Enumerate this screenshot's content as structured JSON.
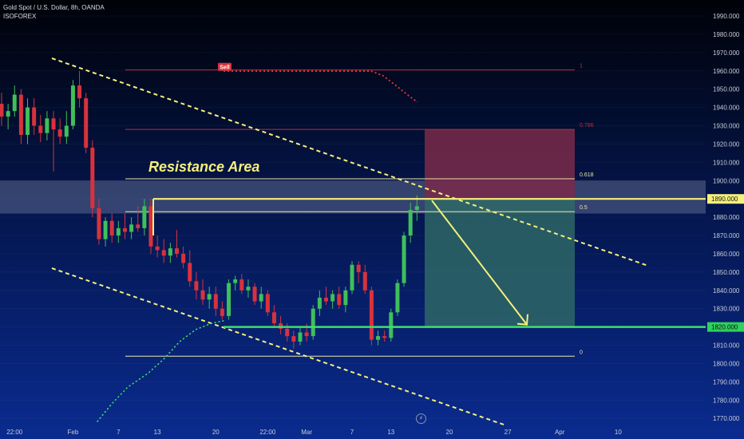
{
  "header": {
    "symbol_line": "Gold Spot / U.S. Dollar, 8h, OANDA",
    "author": "ISOFOREX"
  },
  "icons": {
    "bolt": "lightning-icon",
    "bolt_glyph": "⚡"
  },
  "colors": {
    "bull": "#3fbf5a",
    "bear": "#d8323c",
    "trendline": "#f5f07a",
    "fib_line": "#b82e3a",
    "fib_half": "#ece7a5",
    "price_badge_bg": "#f5f07a",
    "support_line": "#3ee06b",
    "support_badge_bg": "#2fd15e",
    "stop_zone": "#7a2a4a",
    "target_zone": "#2f6b66",
    "resistance_band": "#9aa6c0"
  },
  "chart_data": {
    "type": "candlestick",
    "symbol": "Gold Spot / U.S. Dollar",
    "timeframe": "8h",
    "source": "OANDA",
    "ylim": [
      1765,
      1995
    ],
    "y_ticks": [
      "1770.000",
      "1780.000",
      "1790.000",
      "1800.000",
      "1810.000",
      "1820.000",
      "1830.000",
      "1840.000",
      "1850.000",
      "1860.000",
      "1870.000",
      "1880.000",
      "1890.000",
      "1900.000",
      "1910.000",
      "1920.000",
      "1930.000",
      "1940.000",
      "1950.000",
      "1960.000",
      "1970.000",
      "1980.000",
      "1990.000"
    ],
    "y_tick_values": [
      1770,
      1780,
      1790,
      1800,
      1810,
      1820,
      1830,
      1840,
      1850,
      1860,
      1870,
      1880,
      1890,
      1900,
      1910,
      1920,
      1930,
      1940,
      1950,
      1960,
      1970,
      1980,
      1990
    ],
    "x_ticks": [
      "22:00",
      "Feb",
      "7",
      "13",
      "20",
      "22:00",
      "Mar",
      "7",
      "13",
      "20",
      "27",
      "Apr",
      "10"
    ],
    "x_tick_bars": [
      2,
      11,
      18,
      24,
      33,
      41,
      47,
      54,
      60,
      69,
      78,
      86,
      95
    ],
    "candles": [
      {
        "o": 1942,
        "h": 1948,
        "l": 1930,
        "c": 1935
      },
      {
        "o": 1935,
        "h": 1942,
        "l": 1928,
        "c": 1938
      },
      {
        "o": 1938,
        "h": 1952,
        "l": 1935,
        "c": 1947
      },
      {
        "o": 1947,
        "h": 1950,
        "l": 1920,
        "c": 1925
      },
      {
        "o": 1925,
        "h": 1945,
        "l": 1920,
        "c": 1940
      },
      {
        "o": 1940,
        "h": 1945,
        "l": 1925,
        "c": 1930
      },
      {
        "o": 1930,
        "h": 1936,
        "l": 1921,
        "c": 1926
      },
      {
        "o": 1926,
        "h": 1938,
        "l": 1922,
        "c": 1934
      },
      {
        "o": 1934,
        "h": 1938,
        "l": 1905,
        "c": 1928
      },
      {
        "o": 1928,
        "h": 1934,
        "l": 1920,
        "c": 1924
      },
      {
        "o": 1924,
        "h": 1938,
        "l": 1920,
        "c": 1930
      },
      {
        "o": 1930,
        "h": 1955,
        "l": 1928,
        "c": 1952
      },
      {
        "o": 1952,
        "h": 1960,
        "l": 1940,
        "c": 1945
      },
      {
        "o": 1945,
        "h": 1948,
        "l": 1915,
        "c": 1918
      },
      {
        "o": 1918,
        "h": 1922,
        "l": 1880,
        "c": 1885
      },
      {
        "o": 1885,
        "h": 1890,
        "l": 1865,
        "c": 1868
      },
      {
        "o": 1868,
        "h": 1880,
        "l": 1864,
        "c": 1878
      },
      {
        "o": 1878,
        "h": 1882,
        "l": 1866,
        "c": 1870
      },
      {
        "o": 1870,
        "h": 1878,
        "l": 1866,
        "c": 1874
      },
      {
        "o": 1874,
        "h": 1882,
        "l": 1868,
        "c": 1872
      },
      {
        "o": 1872,
        "h": 1880,
        "l": 1868,
        "c": 1876
      },
      {
        "o": 1876,
        "h": 1886,
        "l": 1872,
        "c": 1874
      },
      {
        "o": 1874,
        "h": 1890,
        "l": 1870,
        "c": 1886
      },
      {
        "o": 1886,
        "h": 1890,
        "l": 1860,
        "c": 1864
      },
      {
        "o": 1864,
        "h": 1870,
        "l": 1858,
        "c": 1862
      },
      {
        "o": 1862,
        "h": 1868,
        "l": 1855,
        "c": 1859
      },
      {
        "o": 1859,
        "h": 1866,
        "l": 1855,
        "c": 1863
      },
      {
        "o": 1863,
        "h": 1873,
        "l": 1858,
        "c": 1860
      },
      {
        "o": 1860,
        "h": 1864,
        "l": 1852,
        "c": 1855
      },
      {
        "o": 1855,
        "h": 1862,
        "l": 1842,
        "c": 1845
      },
      {
        "o": 1845,
        "h": 1850,
        "l": 1835,
        "c": 1840
      },
      {
        "o": 1840,
        "h": 1846,
        "l": 1832,
        "c": 1835
      },
      {
        "o": 1835,
        "h": 1842,
        "l": 1830,
        "c": 1838
      },
      {
        "o": 1838,
        "h": 1842,
        "l": 1826,
        "c": 1830
      },
      {
        "o": 1830,
        "h": 1834,
        "l": 1824,
        "c": 1826
      },
      {
        "o": 1826,
        "h": 1846,
        "l": 1824,
        "c": 1844
      },
      {
        "o": 1844,
        "h": 1848,
        "l": 1840,
        "c": 1846
      },
      {
        "o": 1846,
        "h": 1849,
        "l": 1838,
        "c": 1840
      },
      {
        "o": 1840,
        "h": 1846,
        "l": 1836,
        "c": 1842
      },
      {
        "o": 1842,
        "h": 1844,
        "l": 1832,
        "c": 1834
      },
      {
        "o": 1834,
        "h": 1842,
        "l": 1830,
        "c": 1838
      },
      {
        "o": 1838,
        "h": 1840,
        "l": 1826,
        "c": 1828
      },
      {
        "o": 1828,
        "h": 1832,
        "l": 1820,
        "c": 1822
      },
      {
        "o": 1822,
        "h": 1826,
        "l": 1816,
        "c": 1819
      },
      {
        "o": 1819,
        "h": 1822,
        "l": 1812,
        "c": 1815
      },
      {
        "o": 1815,
        "h": 1818,
        "l": 1808,
        "c": 1812
      },
      {
        "o": 1812,
        "h": 1820,
        "l": 1810,
        "c": 1817
      },
      {
        "o": 1817,
        "h": 1822,
        "l": 1812,
        "c": 1815
      },
      {
        "o": 1815,
        "h": 1832,
        "l": 1813,
        "c": 1830
      },
      {
        "o": 1830,
        "h": 1840,
        "l": 1826,
        "c": 1836
      },
      {
        "o": 1836,
        "h": 1842,
        "l": 1832,
        "c": 1834
      },
      {
        "o": 1834,
        "h": 1840,
        "l": 1830,
        "c": 1838
      },
      {
        "o": 1838,
        "h": 1842,
        "l": 1830,
        "c": 1832
      },
      {
        "o": 1832,
        "h": 1842,
        "l": 1828,
        "c": 1840
      },
      {
        "o": 1840,
        "h": 1856,
        "l": 1838,
        "c": 1854
      },
      {
        "o": 1854,
        "h": 1856,
        "l": 1844,
        "c": 1850
      },
      {
        "o": 1850,
        "h": 1854,
        "l": 1838,
        "c": 1840
      },
      {
        "o": 1840,
        "h": 1842,
        "l": 1810,
        "c": 1813
      },
      {
        "o": 1813,
        "h": 1818,
        "l": 1810,
        "c": 1815
      },
      {
        "o": 1815,
        "h": 1818,
        "l": 1812,
        "c": 1814
      },
      {
        "o": 1814,
        "h": 1830,
        "l": 1812,
        "c": 1828
      },
      {
        "o": 1828,
        "h": 1846,
        "l": 1826,
        "c": 1844
      },
      {
        "o": 1844,
        "h": 1872,
        "l": 1842,
        "c": 1870
      },
      {
        "o": 1870,
        "h": 1888,
        "l": 1866,
        "c": 1884
      },
      {
        "o": 1884,
        "h": 1892,
        "l": 1878,
        "c": 1886
      }
    ],
    "fibonacci": [
      {
        "level": "1",
        "price": 1960.5
      },
      {
        "level": "0.786",
        "price": 1928
      },
      {
        "level": "0.618",
        "price": 1901
      },
      {
        "level": "0.5",
        "price": 1883
      },
      {
        "level": "0",
        "price": 1804
      }
    ],
    "price_lines": [
      {
        "label": "1890.000",
        "price": 1890.0,
        "role": "resistance"
      },
      {
        "label": "1820.000",
        "price": 1820.0,
        "role": "support"
      }
    ],
    "resistance_area": {
      "label": "Resistance Area",
      "top": 1900,
      "bottom": 1882
    },
    "trade_box": {
      "entry": 1890,
      "stop": 1928,
      "target": 1820
    },
    "sell_signal": {
      "label": "Sell",
      "price": 1960
    }
  }
}
